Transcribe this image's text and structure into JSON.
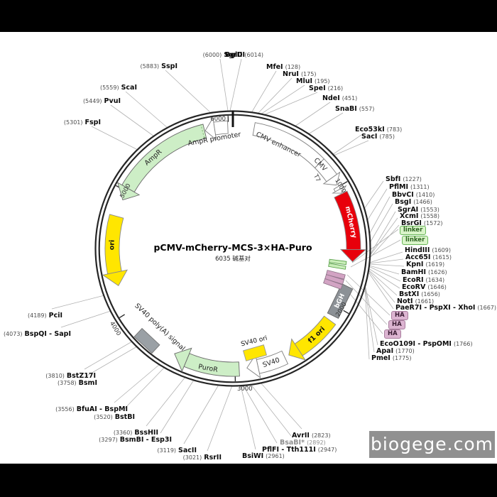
{
  "title": {
    "name": "pCMV-mCherry-MCS-3×HA-Puro",
    "size": "6035 碱基对"
  },
  "watermark": {
    "text": "biogege.com"
  },
  "ticks": {
    "t1000": "1000",
    "t2000": "2000",
    "t3000": "3000",
    "t4000": "4000",
    "t5000": "5000",
    "t6000": "6000"
  },
  "features": {
    "cmv_enhancer": {
      "label": "CMV enhancer",
      "color": "#ffffff"
    },
    "cmv": {
      "label": "CMV",
      "color": "#ffffff"
    },
    "t7": {
      "label": "T7",
      "color": "#ffffff"
    },
    "mcherry": {
      "label": "mCherry",
      "color": "#e8000b"
    },
    "bgh": {
      "label": "bGH",
      "color": "#8c9196"
    },
    "f1_ori": {
      "label": "f1 ori",
      "color": "#ffe600"
    },
    "sv40": {
      "label": "SV40",
      "color": "#ffffff"
    },
    "sv40_ori": {
      "label": "SV40 ori",
      "color": "#ffe600"
    },
    "puror": {
      "label": "PuroR",
      "color": "#cdeec6"
    },
    "sv40_polya": {
      "label": "SV40 poly(A) signal",
      "color": "#9aa0a5"
    },
    "ori": {
      "label": "ori",
      "color": "#ffe600"
    },
    "ampr": {
      "label": "AmpR",
      "color": "#cdeec6"
    },
    "ampr_promoter": {
      "label": "AmpR promoter",
      "color": "#ffffff"
    }
  },
  "badges": [
    "linker",
    "linker",
    "HA",
    "HA",
    "HA"
  ],
  "sites": [
    {
      "name": "SgrDI",
      "pos": "(6000)"
    },
    {
      "name": "BglII",
      "pos": "(6014)"
    },
    {
      "name": "SspI",
      "pos": "(5883)"
    },
    {
      "name": "ScaI",
      "pos": "(5559)"
    },
    {
      "name": "PvuI",
      "pos": "(5449)"
    },
    {
      "name": "FspI",
      "pos": "(5301)"
    },
    {
      "name": "MfeI",
      "pos": "(128)"
    },
    {
      "name": "NruI",
      "pos": "(175)"
    },
    {
      "name": "MluI",
      "pos": "(195)"
    },
    {
      "name": "SpeI",
      "pos": "(216)"
    },
    {
      "name": "NdeI",
      "pos": "(451)"
    },
    {
      "name": "SnaBI",
      "pos": "(557)"
    },
    {
      "name": "Eco53kI",
      "pos": "(783)"
    },
    {
      "name": "SacI",
      "pos": "(785)"
    },
    {
      "name": "SbfI",
      "pos": "(1227)"
    },
    {
      "name": "PflMI",
      "pos": "(1311)"
    },
    {
      "name": "BbvCI",
      "pos": "(1410)"
    },
    {
      "name": "BsgI",
      "pos": "(1466)"
    },
    {
      "name": "SgrAI",
      "pos": "(1553)"
    },
    {
      "name": "XcmI",
      "pos": "(1558)"
    },
    {
      "name": "BsrGI",
      "pos": "(1572)"
    },
    {
      "name": "HindIII",
      "pos": "(1609)"
    },
    {
      "name": "Acc65I",
      "pos": "(1615)"
    },
    {
      "name": "KpnI",
      "pos": "(1619)"
    },
    {
      "name": "BamHI",
      "pos": "(1626)"
    },
    {
      "name": "EcoRI",
      "pos": "(1634)"
    },
    {
      "name": "EcoRV",
      "pos": "(1646)"
    },
    {
      "name": "BstXI",
      "pos": "(1656)"
    },
    {
      "name": "NotI",
      "pos": "(1661)"
    },
    {
      "name": "PaeR7I - PspXI - XhoI",
      "pos": "(1667)"
    },
    {
      "name": "EcoO109I - PspOMI",
      "pos": "(1766)"
    },
    {
      "name": "ApaI",
      "pos": "(1770)"
    },
    {
      "name": "PmeI",
      "pos": "(1775)"
    },
    {
      "name": "AvrII",
      "pos": "(2823)"
    },
    {
      "name": "BsaBI*",
      "pos": "(2892)"
    },
    {
      "name": "PflFI - Tth111I",
      "pos": "(2947)"
    },
    {
      "name": "BsiWI",
      "pos": "(2961)"
    },
    {
      "name": "RsrII",
      "pos": "(3021)"
    },
    {
      "name": "SacII",
      "pos": "(3119)"
    },
    {
      "name": "BsmBI - Esp3I",
      "pos": "(3297)"
    },
    {
      "name": "BssHII",
      "pos": "(3360)"
    },
    {
      "name": "BstBI",
      "pos": "(3520)"
    },
    {
      "name": "BfuAI - BspMI",
      "pos": "(3556)"
    },
    {
      "name": "BsmI",
      "pos": "(3758)"
    },
    {
      "name": "BstZ17I",
      "pos": "(3810)"
    },
    {
      "name": "BspQI - SapI",
      "pos": "(4073)"
    },
    {
      "name": "PciI",
      "pos": "(4189)"
    }
  ]
}
